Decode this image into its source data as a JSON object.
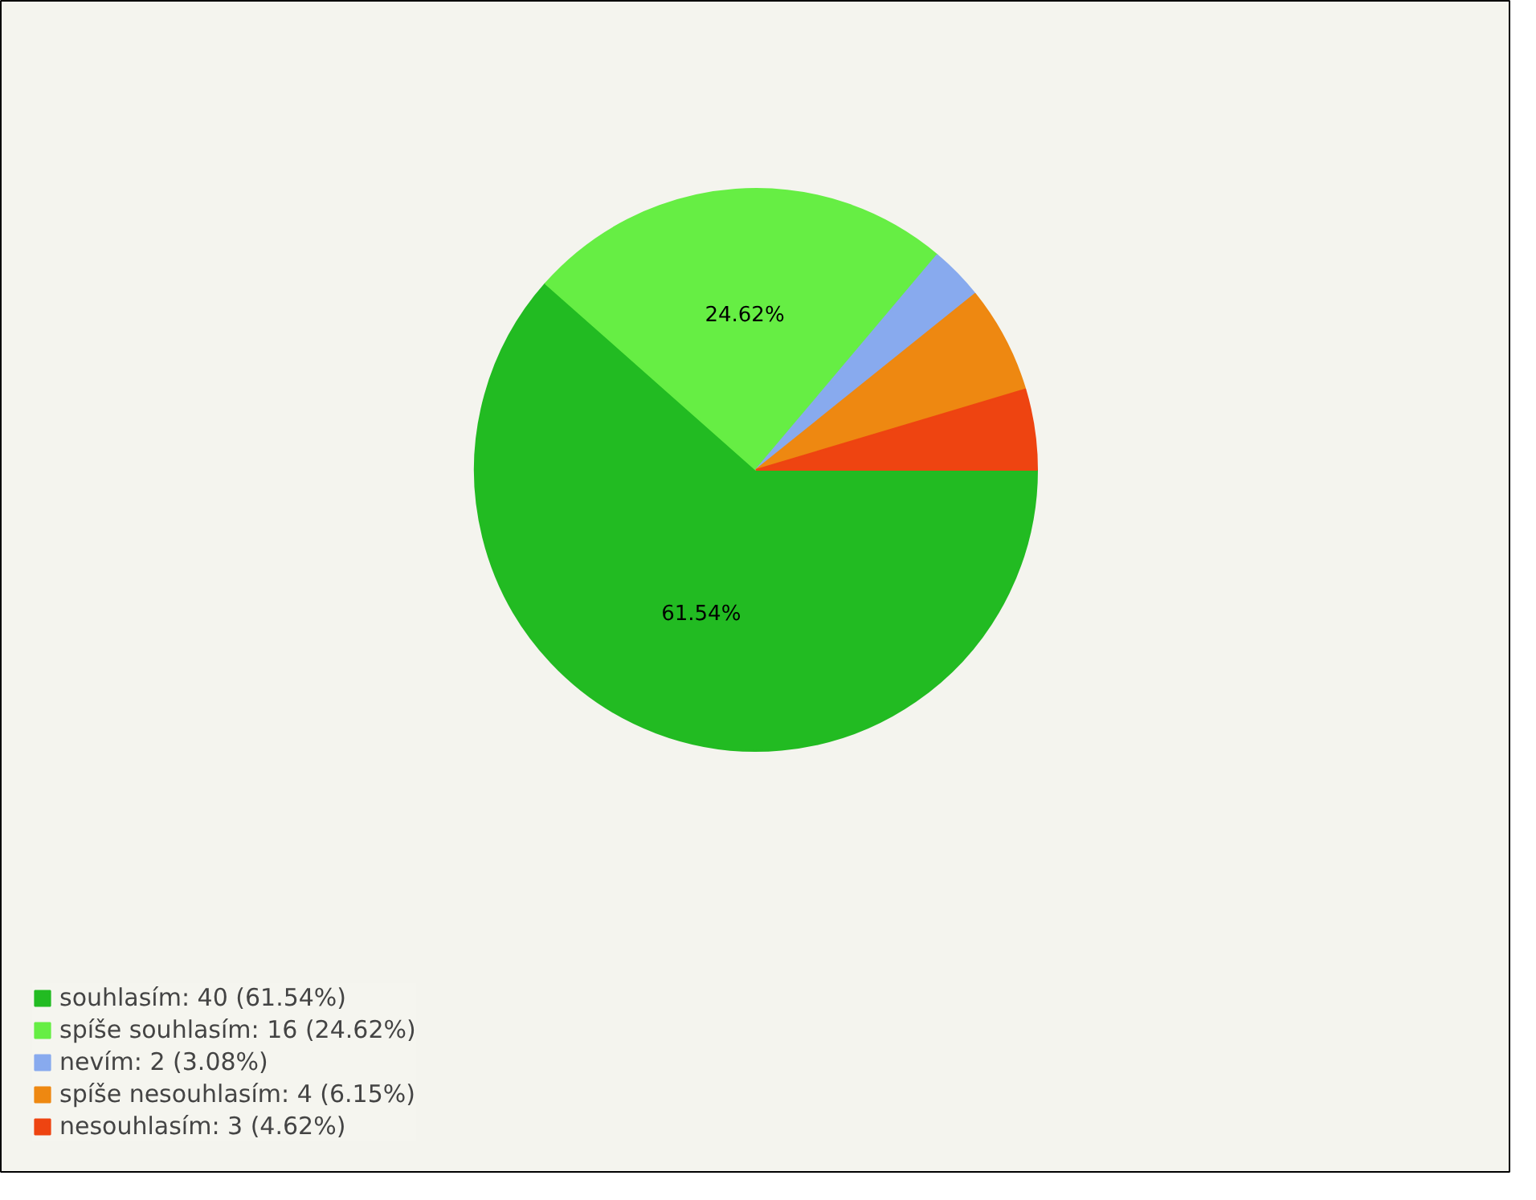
{
  "chart_data": {
    "type": "pie",
    "categories": [
      "souhlasím: 40 (61.54%)",
      "spíše souhlasím: 16 (24.62%)",
      "nevím: 2 (3.08%)",
      "spíše nesouhlasím: 4 (6.15%)",
      "nesouhlasím: 3 (4.62%)"
    ],
    "values": [
      61.54,
      24.62,
      3.08,
      6.15,
      4.62
    ],
    "colors": [
      "#22bb22",
      "#66ee44",
      "#88aaee",
      "#ee8811",
      "#ee4411"
    ],
    "value_labels": [
      "61.54%",
      "24.62%",
      null,
      null,
      null
    ],
    "legend": "bottom left"
  }
}
